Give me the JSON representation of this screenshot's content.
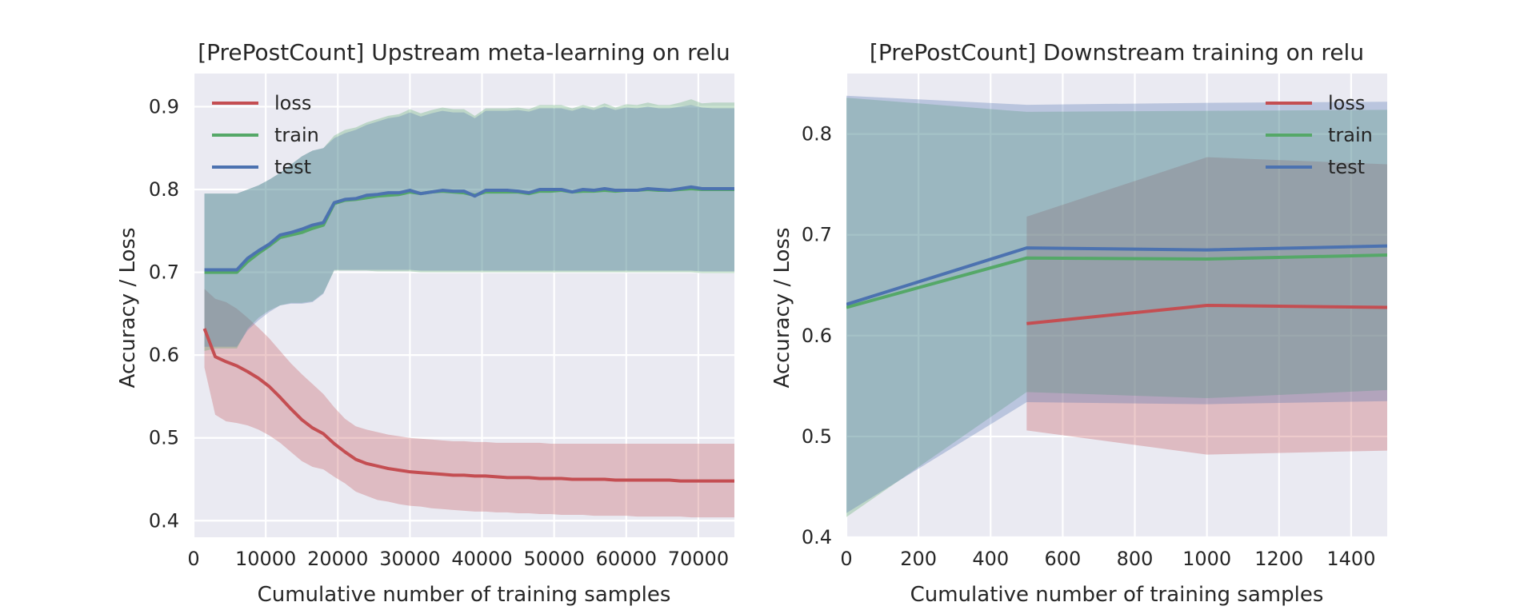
{
  "figure": {
    "background": "#ffffff",
    "plot_background": "#eaeaf2",
    "grid_color": "#ffffff"
  },
  "chart_data": [
    {
      "type": "line",
      "title": "[PrePostCount] Upstream meta-learning on relu",
      "xlabel": "Cumulative number of training samples",
      "ylabel": "Accuracy / Loss",
      "xlim": [
        0,
        75000
      ],
      "ylim": [
        0.38,
        0.94
      ],
      "xticks": [
        0,
        10000,
        20000,
        30000,
        40000,
        50000,
        60000,
        70000
      ],
      "yticks": [
        0.4,
        0.5,
        0.6,
        0.7,
        0.8,
        0.9
      ],
      "grid": true,
      "legend": "top-left",
      "x": [
        1500,
        3000,
        4500,
        6000,
        7500,
        9000,
        10500,
        12000,
        13500,
        15000,
        16500,
        18000,
        19500,
        21000,
        22500,
        24000,
        25500,
        27000,
        28500,
        30000,
        31500,
        33000,
        34500,
        36000,
        37500,
        39000,
        40500,
        42000,
        43500,
        45000,
        46500,
        48000,
        49500,
        51000,
        52500,
        54000,
        55500,
        57000,
        58500,
        60000,
        61500,
        63000,
        64500,
        66000,
        67500,
        69000,
        70500,
        72000,
        73500,
        75000
      ],
      "series": [
        {
          "name": "loss",
          "color": "#c44e52",
          "values": [
            0.632,
            0.598,
            0.592,
            0.587,
            0.58,
            0.572,
            0.562,
            0.549,
            0.535,
            0.522,
            0.512,
            0.505,
            0.493,
            0.483,
            0.474,
            0.469,
            0.466,
            0.463,
            0.461,
            0.459,
            0.458,
            0.457,
            0.456,
            0.455,
            0.455,
            0.454,
            0.454,
            0.453,
            0.452,
            0.452,
            0.452,
            0.451,
            0.451,
            0.451,
            0.45,
            0.45,
            0.45,
            0.45,
            0.449,
            0.449,
            0.449,
            0.449,
            0.449,
            0.449,
            0.448,
            0.448,
            0.448,
            0.448,
            0.448,
            0.448
          ],
          "lower": [
            0.585,
            0.528,
            0.52,
            0.518,
            0.515,
            0.51,
            0.503,
            0.494,
            0.483,
            0.472,
            0.465,
            0.462,
            0.453,
            0.445,
            0.435,
            0.43,
            0.425,
            0.423,
            0.42,
            0.418,
            0.417,
            0.415,
            0.414,
            0.413,
            0.412,
            0.411,
            0.411,
            0.41,
            0.41,
            0.409,
            0.409,
            0.408,
            0.408,
            0.407,
            0.407,
            0.407,
            0.406,
            0.406,
            0.406,
            0.406,
            0.405,
            0.405,
            0.405,
            0.405,
            0.405,
            0.404,
            0.404,
            0.404,
            0.404,
            0.404
          ],
          "upper": [
            0.68,
            0.668,
            0.664,
            0.656,
            0.645,
            0.633,
            0.62,
            0.605,
            0.59,
            0.577,
            0.565,
            0.553,
            0.537,
            0.523,
            0.514,
            0.51,
            0.507,
            0.504,
            0.502,
            0.5,
            0.499,
            0.498,
            0.497,
            0.496,
            0.496,
            0.495,
            0.495,
            0.494,
            0.494,
            0.494,
            0.494,
            0.494,
            0.493,
            0.493,
            0.493,
            0.493,
            0.493,
            0.493,
            0.493,
            0.493,
            0.493,
            0.493,
            0.493,
            0.493,
            0.493,
            0.493,
            0.493,
            0.493,
            0.493,
            0.493
          ]
        },
        {
          "name": "train",
          "color": "#55a868",
          "values": [
            0.7,
            0.7,
            0.7,
            0.7,
            0.713,
            0.723,
            0.732,
            0.742,
            0.745,
            0.748,
            0.753,
            0.757,
            0.783,
            0.787,
            0.788,
            0.79,
            0.792,
            0.793,
            0.794,
            0.797,
            0.795,
            0.797,
            0.798,
            0.797,
            0.796,
            0.793,
            0.797,
            0.797,
            0.797,
            0.797,
            0.795,
            0.798,
            0.798,
            0.799,
            0.797,
            0.798,
            0.798,
            0.799,
            0.798,
            0.799,
            0.799,
            0.8,
            0.799,
            0.799,
            0.8,
            0.801,
            0.8,
            0.8,
            0.8,
            0.8
          ],
          "lower": [
            0.605,
            0.608,
            0.608,
            0.608,
            0.632,
            0.645,
            0.654,
            0.66,
            0.663,
            0.663,
            0.665,
            0.675,
            0.702,
            0.702,
            0.702,
            0.702,
            0.701,
            0.701,
            0.701,
            0.701,
            0.7,
            0.7,
            0.7,
            0.7,
            0.7,
            0.7,
            0.7,
            0.7,
            0.7,
            0.7,
            0.7,
            0.7,
            0.7,
            0.7,
            0.7,
            0.7,
            0.7,
            0.7,
            0.7,
            0.7,
            0.7,
            0.7,
            0.7,
            0.7,
            0.7,
            0.7,
            0.699,
            0.699,
            0.699,
            0.699
          ],
          "upper": [
            0.795,
            0.795,
            0.795,
            0.795,
            0.8,
            0.805,
            0.812,
            0.82,
            0.83,
            0.84,
            0.847,
            0.85,
            0.865,
            0.872,
            0.875,
            0.881,
            0.885,
            0.889,
            0.891,
            0.897,
            0.892,
            0.896,
            0.899,
            0.897,
            0.897,
            0.889,
            0.898,
            0.898,
            0.898,
            0.899,
            0.897,
            0.902,
            0.902,
            0.902,
            0.898,
            0.902,
            0.899,
            0.904,
            0.899,
            0.903,
            0.902,
            0.905,
            0.902,
            0.902,
            0.905,
            0.909,
            0.904,
            0.905,
            0.905,
            0.905
          ]
        },
        {
          "name": "test",
          "color": "#4c72b0",
          "values": [
            0.703,
            0.703,
            0.703,
            0.703,
            0.717,
            0.726,
            0.734,
            0.745,
            0.748,
            0.752,
            0.757,
            0.76,
            0.784,
            0.788,
            0.789,
            0.793,
            0.794,
            0.796,
            0.796,
            0.799,
            0.795,
            0.797,
            0.799,
            0.798,
            0.798,
            0.792,
            0.799,
            0.799,
            0.799,
            0.798,
            0.796,
            0.8,
            0.8,
            0.8,
            0.797,
            0.8,
            0.799,
            0.801,
            0.799,
            0.799,
            0.799,
            0.801,
            0.8,
            0.799,
            0.801,
            0.803,
            0.801,
            0.801,
            0.801,
            0.801
          ],
          "lower": [
            0.61,
            0.61,
            0.61,
            0.61,
            0.63,
            0.642,
            0.652,
            0.66,
            0.662,
            0.662,
            0.664,
            0.674,
            0.703,
            0.703,
            0.703,
            0.703,
            0.703,
            0.703,
            0.703,
            0.703,
            0.702,
            0.702,
            0.702,
            0.702,
            0.702,
            0.702,
            0.702,
            0.702,
            0.702,
            0.702,
            0.702,
            0.702,
            0.702,
            0.702,
            0.702,
            0.702,
            0.702,
            0.702,
            0.702,
            0.702,
            0.702,
            0.702,
            0.702,
            0.702,
            0.702,
            0.702,
            0.701,
            0.701,
            0.701,
            0.701
          ],
          "upper": [
            0.795,
            0.795,
            0.795,
            0.795,
            0.8,
            0.805,
            0.812,
            0.82,
            0.83,
            0.84,
            0.847,
            0.85,
            0.862,
            0.868,
            0.872,
            0.878,
            0.882,
            0.886,
            0.888,
            0.893,
            0.888,
            0.892,
            0.895,
            0.893,
            0.893,
            0.886,
            0.895,
            0.895,
            0.895,
            0.896,
            0.894,
            0.898,
            0.898,
            0.898,
            0.895,
            0.899,
            0.896,
            0.9,
            0.896,
            0.899,
            0.898,
            0.9,
            0.898,
            0.898,
            0.9,
            0.902,
            0.899,
            0.898,
            0.898,
            0.898
          ]
        }
      ]
    },
    {
      "type": "line",
      "title": "[PrePostCount] Downstream training on relu",
      "xlabel": "Cumulative number of training samples",
      "ylabel": "Accuracy / Loss",
      "xlim": [
        0,
        1500
      ],
      "ylim": [
        0.4,
        0.86
      ],
      "xticks": [
        0,
        200,
        400,
        600,
        800,
        1000,
        1200,
        1400
      ],
      "yticks": [
        0.4,
        0.5,
        0.6,
        0.7,
        0.8
      ],
      "grid": true,
      "legend": "top-right",
      "series": [
        {
          "name": "loss",
          "color": "#c44e52",
          "x": [
            500,
            1000,
            1500
          ],
          "values": [
            0.612,
            0.63,
            0.628
          ],
          "lower": [
            0.506,
            0.482,
            0.486
          ],
          "upper": [
            0.718,
            0.777,
            0.77
          ]
        },
        {
          "name": "train",
          "color": "#55a868",
          "x": [
            0,
            500,
            1000,
            1500
          ],
          "values": [
            0.628,
            0.677,
            0.676,
            0.68
          ],
          "lower": [
            0.42,
            0.544,
            0.538,
            0.546
          ],
          "upper": [
            0.836,
            0.822,
            0.823,
            0.824
          ]
        },
        {
          "name": "test",
          "color": "#4c72b0",
          "x": [
            0,
            500,
            1000,
            1500
          ],
          "values": [
            0.631,
            0.687,
            0.685,
            0.689
          ],
          "lower": [
            0.424,
            0.534,
            0.532,
            0.535
          ],
          "upper": [
            0.838,
            0.829,
            0.831,
            0.832
          ]
        }
      ]
    }
  ]
}
